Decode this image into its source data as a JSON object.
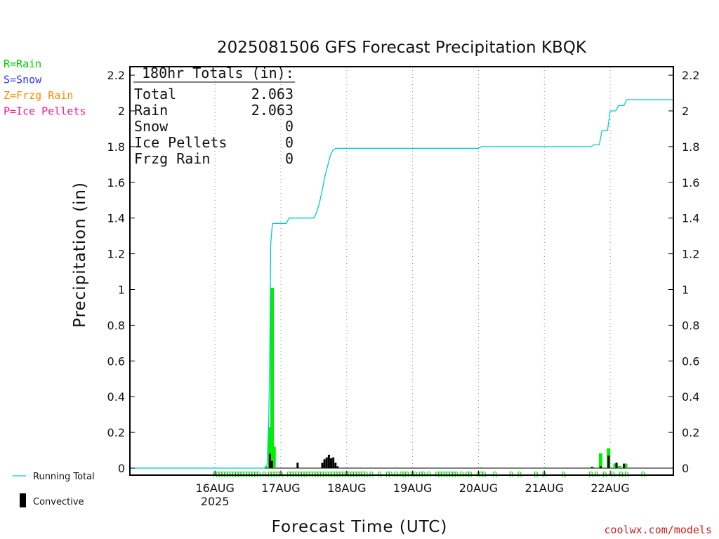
{
  "chart_data": {
    "type": "bar",
    "title": "2025081506 GFS Forecast Precipitation KBQK",
    "xlabel": "Forecast Time (UTC)",
    "ylabel": "Precipitation (in)",
    "ylim": [
      0,
      2.25
    ],
    "yticks": [
      0,
      0.2,
      0.4,
      0.6,
      0.8,
      1,
      1.2,
      1.4,
      1.6,
      1.8,
      2,
      2.2
    ],
    "yticklabels": [
      "0",
      "0.2",
      "0.4",
      "0.6",
      "0.8",
      "1",
      "1.2",
      "1.4",
      "1.6",
      "1.8",
      "2",
      "2.2"
    ],
    "xlim_hours": [
      -13,
      185
    ],
    "x_ticks": [
      {
        "hour": 18,
        "label": "16AUG",
        "sublabel": "2025"
      },
      {
        "hour": 42,
        "label": "17AUG",
        "sublabel": ""
      },
      {
        "hour": 66,
        "label": "18AUG",
        "sublabel": ""
      },
      {
        "hour": 90,
        "label": "19AUG",
        "sublabel": ""
      },
      {
        "hour": 114,
        "label": "20AUG",
        "sublabel": ""
      },
      {
        "hour": 138,
        "label": "21AUG",
        "sublabel": ""
      },
      {
        "hour": 162,
        "label": "22AUG",
        "sublabel": ""
      }
    ],
    "grid": "vertical dotted",
    "legend_left": [
      {
        "text": "R=Rain",
        "color": "#00cc00"
      },
      {
        "text": "S=Snow",
        "color": "#3333ff"
      },
      {
        "text": "Z=Frzg Rain",
        "color": "#ff8c00"
      },
      {
        "text": "P=Ice Pellets",
        "color": "#ff1493"
      }
    ],
    "legend_bottom": [
      {
        "text": "Running Total",
        "color": "#00cccc"
      },
      {
        "text": "Convective",
        "color": "#000000"
      }
    ],
    "totals_box": {
      "header": "180hr Totals (in):",
      "rows": [
        {
          "label": "Total",
          "value": "2.063"
        },
        {
          "label": "Rain",
          "value": "2.063"
        },
        {
          "label": "Snow",
          "value": "0"
        },
        {
          "label": "Ice Pellets",
          "value": "0"
        },
        {
          "label": "Frzg Rain",
          "value": "0"
        }
      ]
    },
    "series": [
      {
        "name": "Running Total",
        "color": "#00cccc",
        "x": [
          -13,
          36,
          37,
          37.6,
          38,
          38.3,
          38.7,
          39,
          42,
          44,
          45,
          51,
          54,
          55,
          56,
          57,
          58,
          59,
          60,
          61,
          62,
          63,
          64,
          114,
          115,
          155,
          156,
          158,
          159,
          161,
          162,
          164,
          165,
          167,
          168,
          185
        ],
        "values": [
          0,
          0,
          0.02,
          0.28,
          0.7,
          1.25,
          1.33,
          1.37,
          1.37,
          1.37,
          1.4,
          1.4,
          1.4,
          1.43,
          1.48,
          1.55,
          1.63,
          1.69,
          1.75,
          1.78,
          1.79,
          1.79,
          1.79,
          1.79,
          1.8,
          1.8,
          1.81,
          1.81,
          1.89,
          1.89,
          2.0,
          2.0,
          2.03,
          2.03,
          2.063,
          2.063
        ]
      },
      {
        "name": "Rain",
        "color": "#00ee00",
        "x": [
          37.2,
          38,
          38.8,
          39.5,
          115,
          155.4,
          158.5,
          161.4,
          163.8,
          165.4,
          167.6
        ],
        "values": [
          0.01,
          0.23,
          1.01,
          0.12,
          0.002,
          0.007,
          0.083,
          0.111,
          0.026,
          0.012,
          0.025
        ]
      },
      {
        "name": "Convective",
        "color": "#000000",
        "x": [
          38,
          38.8,
          48.1,
          57.1,
          57.9,
          58.7,
          59.5,
          60.3,
          61.1,
          61.9,
          62.7,
          115,
          155.4,
          158.5,
          161.4,
          164.3,
          167
        ],
        "values": [
          0.08,
          0.04,
          0.03,
          0.03,
          0.05,
          0.06,
          0.075,
          0.055,
          0.06,
          0.03,
          0.01,
          0.003,
          0.006,
          0.01,
          0.07,
          0.03,
          0.025
        ]
      }
    ],
    "ptype_markers": {
      "symbol": "R",
      "color": "#00cc00",
      "hours": [
        18,
        19,
        20,
        21,
        22,
        23,
        24,
        25,
        26,
        27,
        28,
        29,
        30,
        31,
        32,
        33,
        34,
        36,
        38,
        39,
        40,
        41,
        42,
        45,
        46,
        47,
        48,
        49,
        50,
        51,
        52,
        53,
        54,
        55,
        56,
        57,
        58,
        59,
        60,
        61,
        62,
        63,
        64,
        65,
        66,
        67,
        68,
        69,
        70,
        71,
        72,
        73,
        75,
        78,
        81,
        82,
        84,
        86,
        87,
        88,
        90,
        91,
        93,
        94,
        96,
        99,
        100,
        101,
        102,
        103,
        104,
        105,
        106,
        108,
        110,
        111,
        114,
        115,
        116,
        120,
        126,
        129,
        135,
        138,
        145,
        155,
        157,
        160,
        163,
        166,
        168,
        174
      ]
    }
  }
}
